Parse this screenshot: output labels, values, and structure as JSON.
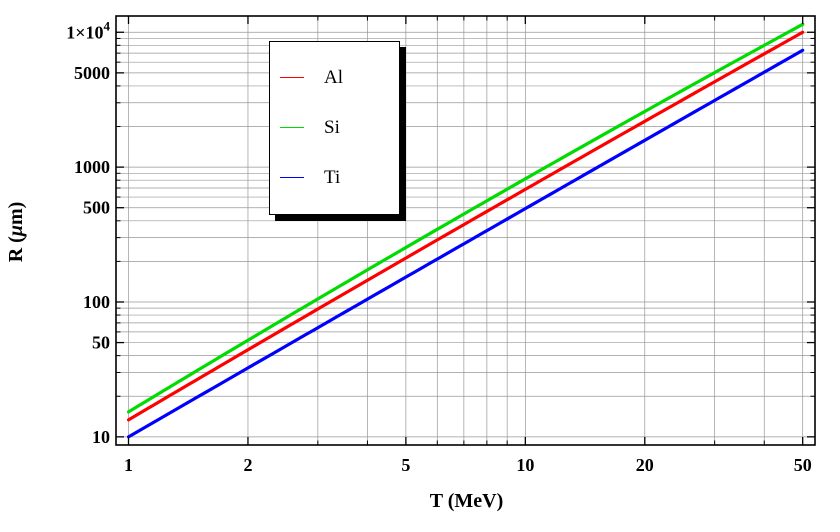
{
  "figure": {
    "background": "#ffffff",
    "frame_color": "#000000",
    "gridline_color": "#979797"
  },
  "chart_data": {
    "type": "line",
    "x_scale": "log",
    "y_scale": "log",
    "title": "",
    "xlabel": "T (MeV)",
    "ylabel": "R (μm)",
    "xlim": [
      0.93,
      53.7
    ],
    "ylim": [
      8.7,
      13200
    ],
    "grid": true,
    "legend_position": "upper-left-inside",
    "x": [
      1,
      2,
      5,
      10,
      20,
      50
    ],
    "series": [
      {
        "name": "Al",
        "color": "#FF0000",
        "values": [
          13.4,
          44.2,
          212,
          684,
          2190,
          10000
        ],
        "loglog_quadratic": {
          "a": 1.126,
          "b": 1.7342,
          "c": -0.0251
        }
      },
      {
        "name": "Si",
        "color": "#00DB00",
        "values": [
          15.3,
          52.0,
          254,
          819,
          2590,
          11500
        ],
        "loglog_quadratic": {
          "a": 1.185,
          "b": 1.7806,
          "c": -0.0524
        }
      },
      {
        "name": "Ti",
        "color": "#0000FF",
        "values": [
          10.0,
          32.4,
          153,
          492,
          1580,
          7360
        ],
        "loglog_quadratic": {
          "a": 1.0,
          "b": 1.7,
          "c": -0.0076
        }
      }
    ],
    "x_ticks_major": [
      1,
      2,
      5,
      10,
      20,
      50
    ],
    "x_tick_labels": [
      "1",
      "2",
      "5",
      "10",
      "20",
      "50"
    ],
    "x_ticks_minor": [
      3,
      4,
      6,
      7,
      8,
      9,
      30,
      40
    ],
    "y_ticks_major": [
      10,
      50,
      100,
      500,
      1000,
      5000,
      10000
    ],
    "y_tick_labels": [
      "10",
      "50",
      "100",
      "500",
      "1000",
      "5000",
      "1×10^4"
    ],
    "y_ticks_minor": [
      20,
      30,
      40,
      60,
      70,
      80,
      90,
      200,
      300,
      400,
      600,
      700,
      800,
      900,
      2000,
      3000,
      4000,
      6000,
      7000,
      8000,
      9000
    ]
  },
  "legend": {
    "items": [
      {
        "label": "Al",
        "color": "#FF0000"
      },
      {
        "label": "Si",
        "color": "#00DB00"
      },
      {
        "label": "Ti",
        "color": "#0000FF"
      }
    ]
  }
}
